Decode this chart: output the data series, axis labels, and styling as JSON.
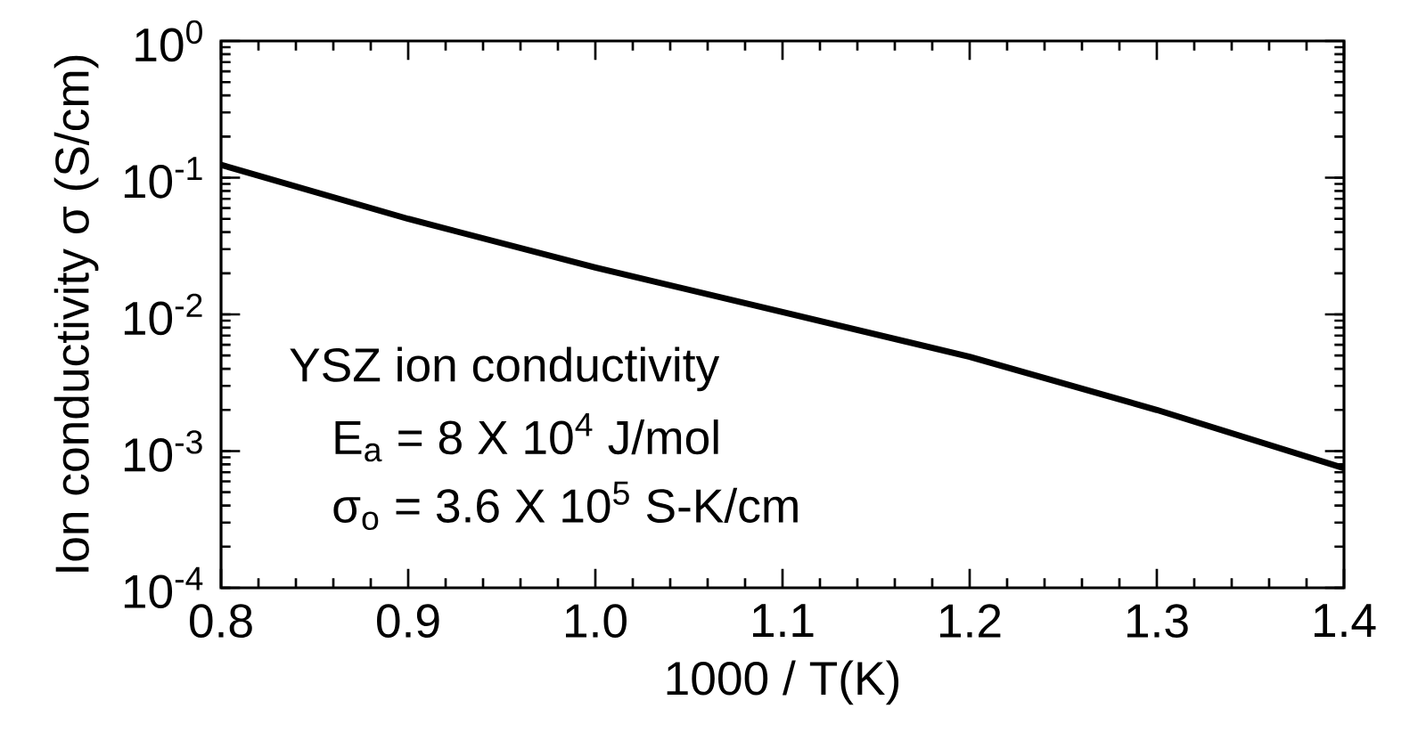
{
  "chart_data": {
    "type": "line",
    "xlabel": "1000 / T(K)",
    "ylabel": "Ion conductivity σ (S/cm)",
    "x": [
      0.8,
      0.9,
      1.0,
      1.1,
      1.2,
      1.3,
      1.4
    ],
    "series": [
      {
        "color": "#000000",
        "values": [
          0.124,
          0.05,
          0.022,
          0.0104,
          0.0049,
          0.002,
          0.00075
        ]
      }
    ],
    "log": "y",
    "xlim": [
      0.8,
      1.4
    ],
    "ylim": [
      0.0001,
      1
    ],
    "xticks": [
      0.8,
      0.9,
      {
        "value": 1.0,
        "label": "1.0"
      },
      1.1,
      1.2,
      1.3,
      1.4
    ],
    "yticks": [
      {
        "value": 0.0001,
        "label": "10$^{-4}$"
      },
      {
        "value": 0.001,
        "label": "10$^{-3}$"
      },
      {
        "value": 0.01,
        "label": "10$^{-2}$"
      },
      {
        "value": 0.1,
        "label": "10$^{-1}$"
      },
      {
        "value": 1,
        "label": "10$^{0}$"
      }
    ],
    "grid": false,
    "marker": "none",
    "line_style": "solid",
    "annotations": [
      "YSZ ion conductivity",
      "E$_{a}$ = 8 X 10$^{4}$ J/mol",
      "σ$_{o}$ = 3.6 X 10$^{5}$ S-K/cm"
    ]
  }
}
